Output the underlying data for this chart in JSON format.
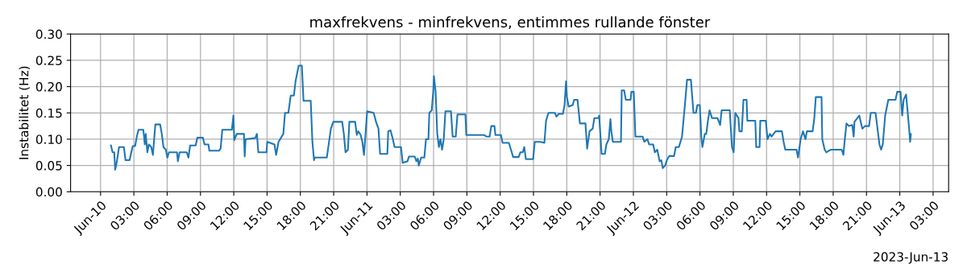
{
  "chart_data": {
    "type": "line",
    "title": "maxfrekvens - minfrekvens, entimmes rullande fönster",
    "ylabel": "Instabilitet (Hz)",
    "annotations": [
      "2023-Jun-13"
    ],
    "xlim": [
      "2023-06-09T21:18",
      "2023-06-13T04:24"
    ],
    "ylim": [
      0,
      0.3
    ],
    "xticks": [
      {
        "value": "2023-06-10T00:00",
        "label": "Jun-10"
      },
      {
        "value": "2023-06-10T03:00",
        "label": "03:00"
      },
      {
        "value": "2023-06-10T06:00",
        "label": "06:00"
      },
      {
        "value": "2023-06-10T09:00",
        "label": "09:00"
      },
      {
        "value": "2023-06-10T12:00",
        "label": "12:00"
      },
      {
        "value": "2023-06-10T15:00",
        "label": "15:00"
      },
      {
        "value": "2023-06-10T18:00",
        "label": "18:00"
      },
      {
        "value": "2023-06-10T21:00",
        "label": "21:00"
      },
      {
        "value": "2023-06-11T00:00",
        "label": "Jun-11"
      },
      {
        "value": "2023-06-11T03:00",
        "label": "03:00"
      },
      {
        "value": "2023-06-11T06:00",
        "label": "06:00"
      },
      {
        "value": "2023-06-11T09:00",
        "label": "09:00"
      },
      {
        "value": "2023-06-11T12:00",
        "label": "12:00"
      },
      {
        "value": "2023-06-11T15:00",
        "label": "15:00"
      },
      {
        "value": "2023-06-11T18:00",
        "label": "18:00"
      },
      {
        "value": "2023-06-11T21:00",
        "label": "21:00"
      },
      {
        "value": "2023-06-12T00:00",
        "label": "Jun-12"
      },
      {
        "value": "2023-06-12T03:00",
        "label": "03:00"
      },
      {
        "value": "2023-06-12T06:00",
        "label": "06:00"
      },
      {
        "value": "2023-06-12T09:00",
        "label": "09:00"
      },
      {
        "value": "2023-06-12T12:00",
        "label": "12:00"
      },
      {
        "value": "2023-06-12T15:00",
        "label": "15:00"
      },
      {
        "value": "2023-06-12T18:00",
        "label": "18:00"
      },
      {
        "value": "2023-06-12T21:00",
        "label": "21:00"
      },
      {
        "value": "2023-06-13T00:00",
        "label": "Jun-13"
      },
      {
        "value": "2023-06-13T03:00",
        "label": "03:00"
      }
    ],
    "yticks": [
      {
        "value": 0,
        "label": "0.00"
      },
      {
        "value": 0.05,
        "label": "0.05"
      },
      {
        "value": 0.1,
        "label": "0.10"
      },
      {
        "value": 0.15,
        "label": "0.15"
      },
      {
        "value": 0.2,
        "label": "0.20"
      },
      {
        "value": 0.25,
        "label": "0.25"
      },
      {
        "value": 0.3,
        "label": "0.30"
      }
    ],
    "grid": true,
    "series": [
      {
        "color": "#1f77b4",
        "x": [
          "2023-06-10T00:56",
          "2023-06-10T01:05",
          "2023-06-10T01:14",
          "2023-06-10T01:19",
          "2023-06-10T01:27",
          "2023-06-10T01:40",
          "2023-06-10T02:06",
          "2023-06-10T02:15",
          "2023-06-10T02:37",
          "2023-06-10T02:46",
          "2023-06-10T02:54",
          "2023-06-10T03:07",
          "2023-06-10T03:16",
          "2023-06-10T03:25",
          "2023-06-10T03:51",
          "2023-06-10T03:55",
          "2023-06-10T03:59",
          "2023-06-10T04:04",
          "2023-06-10T04:13",
          "2023-06-10T04:21",
          "2023-06-10T04:34",
          "2023-06-10T04:43",
          "2023-06-10T04:56",
          "2023-06-10T05:22",
          "2023-06-10T05:31",
          "2023-06-10T05:40",
          "2023-06-10T05:53",
          "2023-06-10T06:01",
          "2023-06-10T06:10",
          "2023-06-10T06:53",
          "2023-06-10T06:58",
          "2023-06-10T07:07",
          "2023-06-10T07:46",
          "2023-06-10T07:55",
          "2023-06-10T08:04",
          "2023-06-10T08:34",
          "2023-06-10T08:43",
          "2023-06-10T09:13",
          "2023-06-10T09:22",
          "2023-06-10T09:43",
          "2023-06-10T09:48",
          "2023-06-10T10:40",
          "2023-06-10T10:49",
          "2023-06-10T10:58",
          "2023-06-10T11:50",
          "2023-06-10T11:58",
          "2023-06-10T12:03",
          "2023-06-10T12:16",
          "2023-06-10T12:55",
          "2023-06-10T12:59",
          "2023-06-10T13:04",
          "2023-06-10T13:56",
          "2023-06-10T14:05",
          "2023-06-10T14:13",
          "2023-06-10T14:57",
          "2023-06-10T15:01",
          "2023-06-10T15:40",
          "2023-06-10T15:49",
          "2023-06-10T16:02",
          "2023-06-10T16:28",
          "2023-06-10T16:37",
          "2023-06-10T16:55",
          "2023-06-10T17:08",
          "2023-06-10T17:25",
          "2023-06-10T17:34",
          "2023-06-10T17:51",
          "2023-06-10T18:08",
          "2023-06-10T18:17",
          "2023-06-10T18:56",
          "2023-06-10T19:05",
          "2023-06-10T19:14",
          "2023-06-10T19:18",
          "2023-06-10T20:23",
          "2023-06-10T20:37",
          "2023-06-10T20:45",
          "2023-06-10T20:58",
          "2023-06-10T21:46",
          "2023-06-10T21:55",
          "2023-06-10T22:04",
          "2023-06-10T22:17",
          "2023-06-10T22:25",
          "2023-06-10T22:56",
          "2023-06-10T23:05",
          "2023-06-10T23:13",
          "2023-06-10T23:26",
          "2023-06-10T23:35",
          "2023-06-10T23:44",
          "2023-06-11T00:01",
          "2023-06-11T00:36",
          "2023-06-11T00:49",
          "2023-06-11T01:02",
          "2023-06-11T01:11",
          "2023-06-11T01:50",
          "2023-06-11T01:55",
          "2023-06-11T02:07",
          "2023-06-11T02:20",
          "2023-06-11T02:29",
          "2023-06-11T03:04",
          "2023-06-11T03:13",
          "2023-06-11T03:39",
          "2023-06-11T03:47",
          "2023-06-11T04:18",
          "2023-06-11T04:27",
          "2023-06-11T04:35",
          "2023-06-11T04:40",
          "2023-06-11T04:53",
          "2023-06-11T05:10",
          "2023-06-11T05:19",
          "2023-06-11T05:32",
          "2023-06-11T05:37",
          "2023-06-11T05:50",
          "2023-06-11T05:58",
          "2023-06-11T06:02",
          "2023-06-11T06:11",
          "2023-06-11T06:20",
          "2023-06-11T06:29",
          "2023-06-11T06:37",
          "2023-06-11T06:46",
          "2023-06-11T06:55",
          "2023-06-11T07:04",
          "2023-06-11T07:34",
          "2023-06-11T07:43",
          "2023-06-11T08:00",
          "2023-06-11T08:09",
          "2023-06-11T08:52",
          "2023-06-11T08:57",
          "2023-06-11T10:32",
          "2023-06-11T10:46",
          "2023-06-11T11:03",
          "2023-06-11T11:12",
          "2023-06-11T11:29",
          "2023-06-11T11:34",
          "2023-06-11T12:04",
          "2023-06-11T12:13",
          "2023-06-11T12:47",
          "2023-06-11T13:01",
          "2023-06-11T13:10",
          "2023-06-11T13:40",
          "2023-06-11T13:49",
          "2023-06-11T14:02",
          "2023-06-11T14:10",
          "2023-06-11T14:19",
          "2023-06-11T14:58",
          "2023-06-11T15:07",
          "2023-06-11T15:37",
          "2023-06-11T15:59",
          "2023-06-11T16:08",
          "2023-06-11T16:21",
          "2023-06-11T16:56",
          "2023-06-11T17:04",
          "2023-06-11T17:17",
          "2023-06-11T17:39",
          "2023-06-11T17:48",
          "2023-06-11T17:56",
          "2023-06-11T18:01",
          "2023-06-11T18:10",
          "2023-06-11T18:32",
          "2023-06-11T18:40",
          "2023-06-11T18:58",
          "2023-06-11T19:11",
          "2023-06-11T19:41",
          "2023-06-11T19:50",
          "2023-06-11T20:03",
          "2023-06-11T20:20",
          "2023-06-11T20:29",
          "2023-06-11T20:51",
          "2023-06-11T20:55",
          "2023-06-11T21:08",
          "2023-06-11T21:26",
          "2023-06-11T21:34",
          "2023-06-11T21:47",
          "2023-06-11T21:56",
          "2023-06-11T22:01",
          "2023-06-11T22:09",
          "2023-06-11T22:53",
          "2023-06-11T22:57",
          "2023-06-11T23:10",
          "2023-06-11T23:19",
          "2023-06-11T23:45",
          "2023-06-11T23:49",
          "2023-06-12T00:02",
          "2023-06-12T00:11",
          "2023-06-12T00:50",
          "2023-06-12T00:59",
          "2023-06-12T01:16",
          "2023-06-12T01:25",
          "2023-06-12T01:47",
          "2023-06-12T01:56",
          "2023-06-12T02:09",
          "2023-06-12T02:22",
          "2023-06-12T02:31",
          "2023-06-12T02:39",
          "2023-06-12T02:52",
          "2023-06-12T03:01",
          "2023-06-12T03:14",
          "2023-06-12T03:40",
          "2023-06-12T03:49",
          "2023-06-12T04:06",
          "2023-06-12T04:23",
          "2023-06-12T04:32",
          "2023-06-12T04:41",
          "2023-06-12T04:50",
          "2023-06-12T05:11",
          "2023-06-12T05:16",
          "2023-06-12T05:25",
          "2023-06-12T05:38",
          "2023-06-12T05:46",
          "2023-06-12T05:59",
          "2023-06-12T06:08",
          "2023-06-12T06:13",
          "2023-06-12T06:26",
          "2023-06-12T06:34",
          "2023-06-12T06:43",
          "2023-06-12T06:52",
          "2023-06-12T07:05",
          "2023-06-12T07:35",
          "2023-06-12T07:49",
          "2023-06-12T07:57",
          "2023-06-12T08:41",
          "2023-06-12T08:45",
          "2023-06-12T08:53",
          "2023-06-12T09:02",
          "2023-06-12T09:11",
          "2023-06-12T09:28",
          "2023-06-12T09:33",
          "2023-06-12T09:46",
          "2023-06-12T09:55",
          "2023-06-12T10:12",
          "2023-06-12T10:16",
          "2023-06-12T10:59",
          "2023-06-12T11:04",
          "2023-06-12T11:22",
          "2023-06-12T11:26",
          "2023-06-12T11:56",
          "2023-06-12T12:05",
          "2023-06-12T12:18",
          "2023-06-12T12:27",
          "2023-06-12T12:49",
          "2023-06-12T13:23",
          "2023-06-12T13:32",
          "2023-06-12T13:41",
          "2023-06-12T14:42",
          "2023-06-12T14:50",
          "2023-06-12T15:04",
          "2023-06-12T15:17",
          "2023-06-12T15:30",
          "2023-06-12T15:38",
          "2023-06-12T16:09",
          "2023-06-12T16:18",
          "2023-06-12T16:26",
          "2023-06-12T16:57",
          "2023-06-12T17:01",
          "2023-06-12T17:14",
          "2023-06-12T17:23",
          "2023-06-12T17:36",
          "2023-06-12T17:49",
          "2023-06-12T18:46",
          "2023-06-12T18:55",
          "2023-06-12T19:03",
          "2023-06-12T19:12",
          "2023-06-12T19:25",
          "2023-06-12T19:43",
          "2023-06-12T19:51",
          "2023-06-12T19:55",
          "2023-06-12T20:21",
          "2023-06-12T20:34",
          "2023-06-12T20:38",
          "2023-06-12T20:52",
          "2023-06-12T21:14",
          "2023-06-12T21:23",
          "2023-06-12T21:49",
          "2023-06-12T21:58",
          "2023-06-12T22:10",
          "2023-06-12T22:19",
          "2023-06-12T22:28",
          "2023-06-12T22:41",
          "2023-06-12T22:58",
          "2023-06-12T23:37",
          "2023-06-12T23:46",
          "2023-06-13T00:04",
          "2023-06-13T00:13",
          "2023-06-13T00:21",
          "2023-06-13T00:34",
          "2023-06-13T00:43",
          "2023-06-13T00:52",
          "2023-06-13T00:56",
          "2023-06-13T01:00"
        ],
        "values": [
          0.088,
          0.075,
          0.075,
          0.042,
          0.055,
          0.085,
          0.085,
          0.06,
          0.06,
          0.075,
          0.087,
          0.087,
          0.105,
          0.118,
          0.118,
          0.105,
          0.09,
          0.11,
          0.075,
          0.09,
          0.085,
          0.07,
          0.128,
          0.128,
          0.11,
          0.085,
          0.08,
          0.065,
          0.075,
          0.075,
          0.058,
          0.075,
          0.075,
          0.065,
          0.088,
          0.088,
          0.103,
          0.103,
          0.09,
          0.09,
          0.078,
          0.078,
          0.082,
          0.118,
          0.118,
          0.145,
          0.098,
          0.11,
          0.11,
          0.067,
          0.1,
          0.102,
          0.11,
          0.075,
          0.075,
          0.095,
          0.09,
          0.07,
          0.095,
          0.11,
          0.15,
          0.15,
          0.183,
          0.183,
          0.21,
          0.24,
          0.24,
          0.173,
          0.173,
          0.095,
          0.06,
          0.065,
          0.065,
          0.1,
          0.12,
          0.133,
          0.133,
          0.11,
          0.075,
          0.08,
          0.133,
          0.133,
          0.108,
          0.115,
          0.108,
          0.095,
          0.07,
          0.153,
          0.15,
          0.133,
          0.12,
          0.072,
          0.072,
          0.115,
          0.117,
          0.1,
          0.085,
          0.085,
          0.055,
          0.058,
          0.067,
          0.067,
          0.058,
          0.063,
          0.05,
          0.065,
          0.065,
          0.1,
          0.1,
          0.15,
          0.155,
          0.19,
          0.22,
          0.19,
          0.11,
          0.085,
          0.1,
          0.08,
          0.1,
          0.153,
          0.153,
          0.105,
          0.105,
          0.147,
          0.147,
          0.108,
          0.108,
          0.105,
          0.105,
          0.125,
          0.125,
          0.108,
          0.108,
          0.093,
          0.093,
          0.077,
          0.066,
          0.066,
          0.075,
          0.075,
          0.085,
          0.062,
          0.062,
          0.095,
          0.095,
          0.093,
          0.135,
          0.15,
          0.15,
          0.143,
          0.148,
          0.148,
          0.165,
          0.21,
          0.18,
          0.162,
          0.165,
          0.175,
          0.175,
          0.13,
          0.13,
          0.082,
          0.115,
          0.12,
          0.14,
          0.14,
          0.145,
          0.072,
          0.072,
          0.09,
          0.1,
          0.138,
          0.115,
          0.095,
          0.095,
          0.193,
          0.193,
          0.175,
          0.175,
          0.19,
          0.19,
          0.105,
          0.105,
          0.095,
          0.1,
          0.09,
          0.09,
          0.075,
          0.08,
          0.058,
          0.06,
          0.045,
          0.05,
          0.06,
          0.068,
          0.068,
          0.085,
          0.085,
          0.105,
          0.14,
          0.175,
          0.213,
          0.213,
          0.19,
          0.15,
          0.15,
          0.165,
          0.165,
          0.1,
          0.085,
          0.11,
          0.11,
          0.135,
          0.155,
          0.14,
          0.14,
          0.127,
          0.155,
          0.155,
          0.13,
          0.085,
          0.075,
          0.15,
          0.14,
          0.115,
          0.115,
          0.175,
          0.175,
          0.135,
          0.135,
          0.085,
          0.085,
          0.135,
          0.135,
          0.1,
          0.11,
          0.105,
          0.115,
          0.115,
          0.095,
          0.08,
          0.08,
          0.065,
          0.1,
          0.115,
          0.1,
          0.115,
          0.115,
          0.14,
          0.18,
          0.18,
          0.1,
          0.08,
          0.075,
          0.078,
          0.08,
          0.08,
          0.07,
          0.1,
          0.13,
          0.125,
          0.127,
          0.105,
          0.133,
          0.145,
          0.125,
          0.12,
          0.125,
          0.125,
          0.15,
          0.15,
          0.125,
          0.09,
          0.08,
          0.09,
          0.145,
          0.175,
          0.175,
          0.19,
          0.19,
          0.145,
          0.175,
          0.185,
          0.15,
          0.113,
          0.095,
          0.11
        ]
      }
    ]
  }
}
